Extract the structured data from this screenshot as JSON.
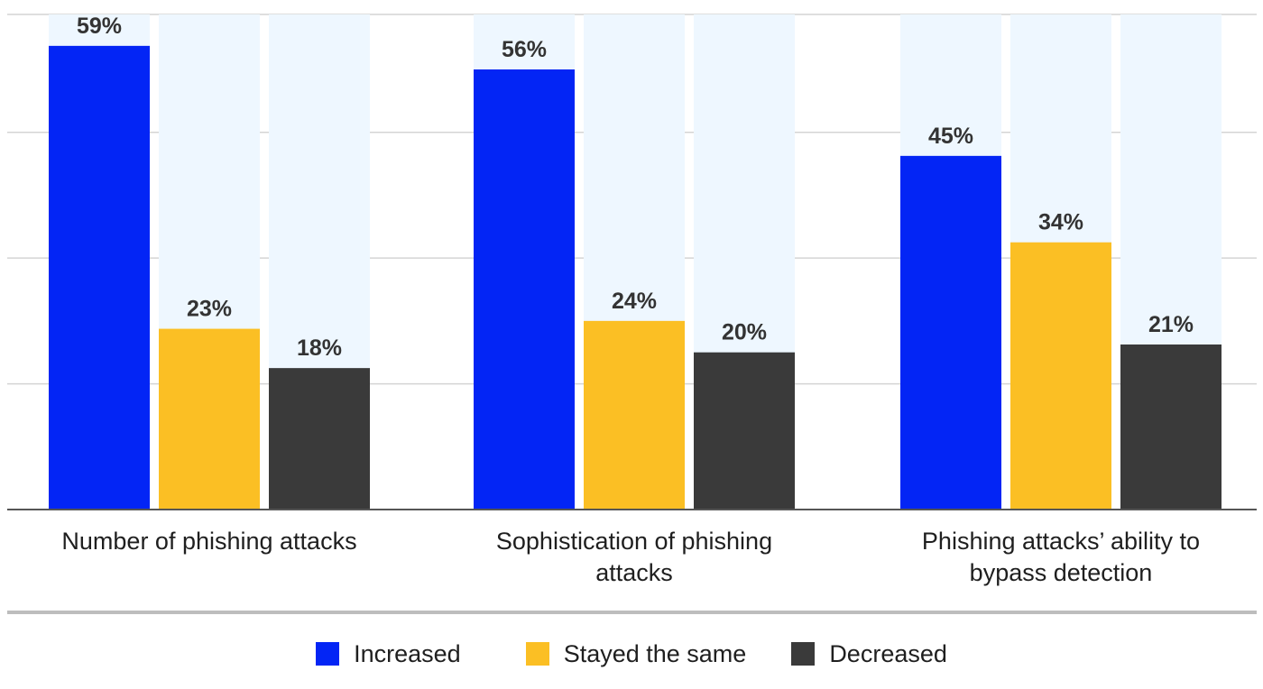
{
  "chart_data": {
    "type": "bar",
    "categories": [
      [
        "Number of phishing attacks"
      ],
      [
        "Sophistication of phishing",
        "attacks"
      ],
      [
        "Phishing attacks’ ability to",
        "bypass detection"
      ]
    ],
    "series": [
      {
        "name": "Increased",
        "values": [
          59,
          56,
          45
        ],
        "labels": [
          "59%",
          "56%",
          "45%"
        ]
      },
      {
        "name": "Stayed the same",
        "values": [
          23,
          24,
          34
        ],
        "labels": [
          "23%",
          "24%",
          "34%"
        ]
      },
      {
        "name": "Decreased",
        "values": [
          18,
          20,
          21
        ],
        "labels": [
          "18%",
          "20%",
          "21%"
        ]
      }
    ],
    "ylim": [
      0,
      63
    ],
    "grid": true,
    "gridlines": [
      0,
      16,
      32,
      48,
      63
    ],
    "legend_position": "bottom-center"
  },
  "colors": {
    "increased": "#0325f5",
    "stayed_the_same": "#fbbf24",
    "decreased": "#3a3a3a",
    "bar_track": "#eef7ff",
    "grid": "#d4d4d4",
    "axis": "#555555",
    "separator": "#bdbdbd",
    "label_text": "#333333",
    "category_text": "#1f1f1f"
  }
}
